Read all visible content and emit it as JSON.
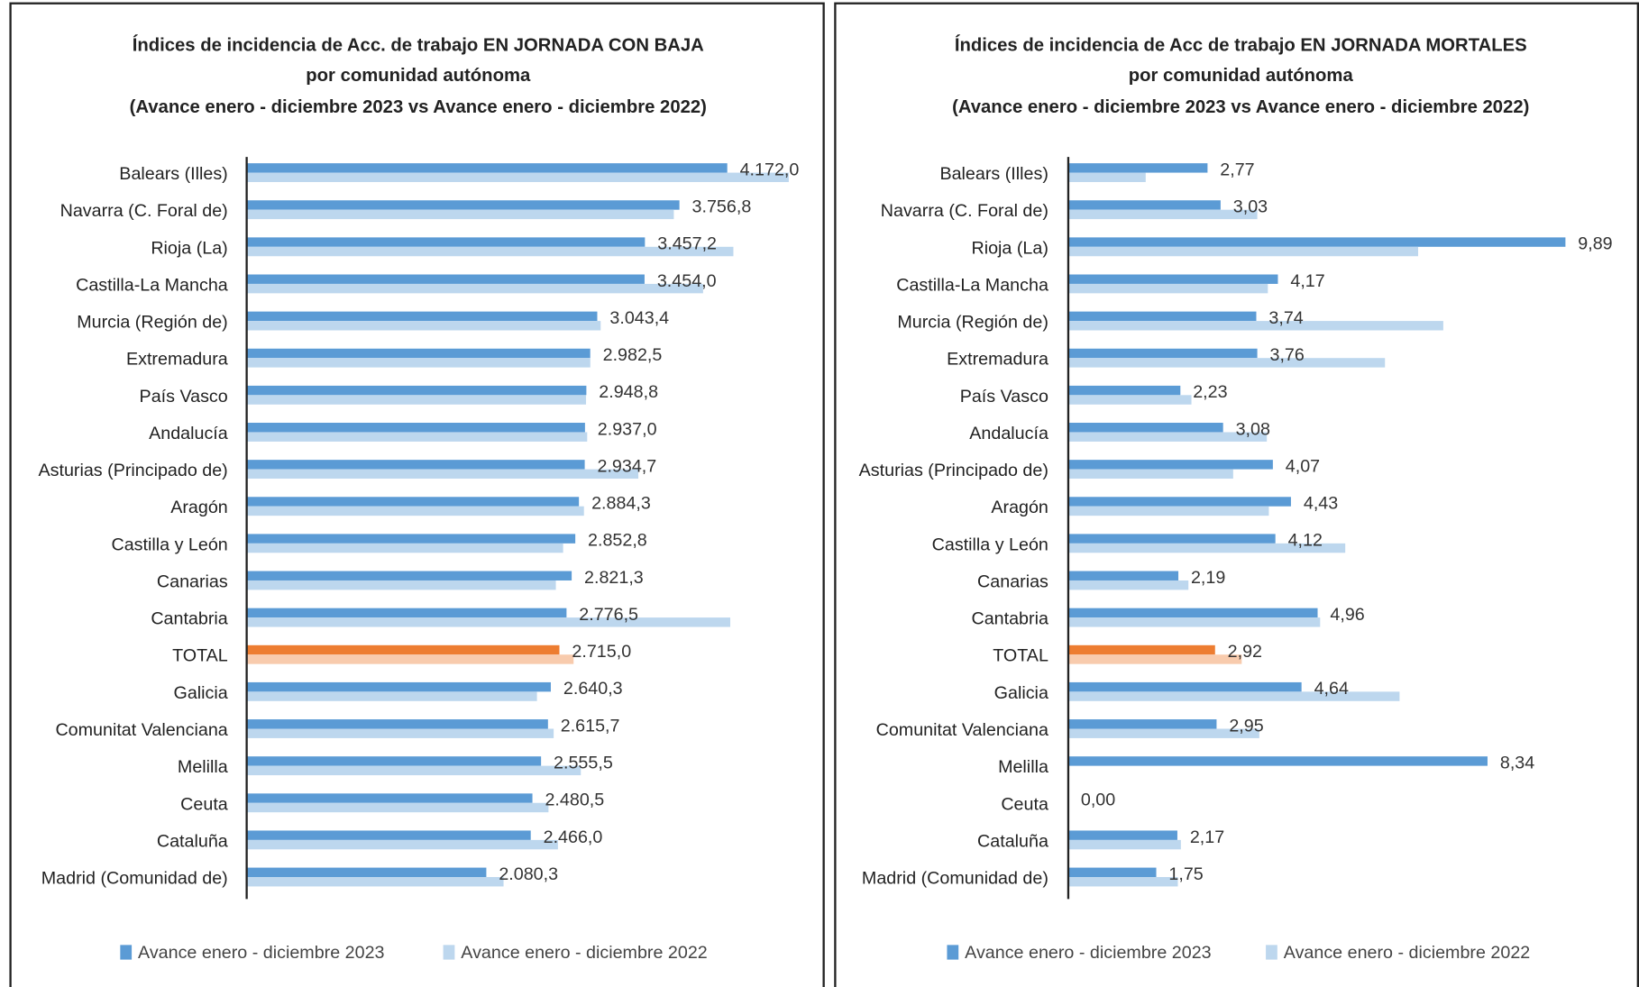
{
  "chart_data": [
    {
      "type": "bar",
      "orientation": "horizontal",
      "title": [
        "Índices de incidencia de Acc. de trabajo EN JORNADA CON BAJA",
        "por comunidad autónoma",
        "(Avance enero - diciembre 2023 vs Avance enero - diciembre 2022)"
      ],
      "categories": [
        "Balears (Illes)",
        "Navarra (C. Foral de)",
        "Rioja (La)",
        "Castilla-La  Mancha",
        "Murcia (Región de)",
        "Extremadura",
        "País Vasco",
        "Andalucía",
        "Asturias (Principado de)",
        "Aragón",
        "Castilla y León",
        "Canarias",
        "Cantabria",
        "TOTAL",
        "Galicia",
        "Comunitat Valenciana",
        "Melilla",
        "Ceuta",
        "Cataluña",
        "Madrid (Comunidad de)"
      ],
      "series": [
        {
          "name": "Avance enero - diciembre 2023",
          "color": "#5b9bd5",
          "values": [
            4172.0,
            3756.8,
            3457.2,
            3454.0,
            3043.4,
            2982.5,
            2948.8,
            2937.0,
            2934.7,
            2884.3,
            2852.8,
            2821.3,
            2776.5,
            2715.0,
            2640.3,
            2615.7,
            2555.5,
            2480.5,
            2466.0,
            2080.3
          ],
          "value_labels": [
            "4.172,0",
            "3.756,8",
            "3.457,2",
            "3.454,0",
            "3.043,4",
            "2.982,5",
            "2.948,8",
            "2.937,0",
            "2.934,7",
            "2.884,3",
            "2.852,8",
            "2.821,3",
            "2.776,5",
            "2.715,0",
            "2.640,3",
            "2.615,7",
            "2.555,5",
            "2.480,5",
            "2.466,0",
            "2.080,3"
          ]
        },
        {
          "name": "Avance enero - diciembre 2022",
          "color": "#bdd7ee",
          "values": [
            4706,
            3708,
            4225,
            3962,
            3073,
            2983,
            2946,
            2956,
            3400,
            2928,
            2747,
            2684,
            4198,
            2838,
            2520,
            2665,
            2901,
            2620,
            2702,
            2230
          ]
        }
      ],
      "highlight_category": "TOTAL",
      "highlight_colors": [
        "#ed7d31",
        "#f8cbad"
      ],
      "xlim": [
        0,
        5000
      ],
      "legend": "bottom"
    },
    {
      "type": "bar",
      "orientation": "horizontal",
      "title": [
        "Índices de incidencia de Acc de trabajo EN JORNADA MORTALES",
        "por comunidad autónoma",
        "(Avance enero - diciembre 2023 vs Avance enero - diciembre 2022)"
      ],
      "categories": [
        "Balears (Illes)",
        "Navarra (C. Foral de)",
        "Rioja  (La)",
        "Castilla-La Mancha",
        "Murcia (Región de)",
        "Extremadura",
        "País  Vasco",
        "Andalucía",
        "Asturias (Principado  de)",
        "Aragón",
        "Castilla y León",
        "Canarias",
        "Cantabria",
        "TOTAL",
        "Galicia",
        "Comunitat Valenciana",
        "Melilla",
        "Ceuta",
        "Cataluña",
        "Madrid (Comunidad  de)"
      ],
      "series": [
        {
          "name": "Avance enero - diciembre 2023",
          "color": "#5b9bd5",
          "values": [
            2.77,
            3.03,
            9.89,
            4.17,
            3.74,
            3.76,
            2.23,
            3.08,
            4.07,
            4.43,
            4.12,
            2.19,
            4.96,
            2.92,
            4.64,
            2.95,
            8.34,
            0.0,
            2.17,
            1.75
          ],
          "value_labels": [
            "2,77",
            "3,03",
            "9,89",
            "4,17",
            "3,74",
            "3,76",
            "2,23",
            "3,08",
            "4,07",
            "4,43",
            "4,12",
            "2,19",
            "4,96",
            "2,92",
            "4,64",
            "2,95",
            "8,34",
            "0,00",
            "2,17",
            "1,75"
          ]
        },
        {
          "name": "Avance enero - diciembre 2022",
          "color": "#bdd7ee",
          "values": [
            1.54,
            3.76,
            6.96,
            3.97,
            7.46,
            6.3,
            2.45,
            3.95,
            3.28,
            3.99,
            5.51,
            2.39,
            5.01,
            3.45,
            6.59,
            3.8,
            0,
            0,
            2.24,
            2.18
          ]
        }
      ],
      "highlight_category": "TOTAL",
      "highlight_colors": [
        "#ed7d31",
        "#f8cbad"
      ],
      "xlim": [
        0,
        11
      ],
      "legend": "bottom"
    }
  ]
}
